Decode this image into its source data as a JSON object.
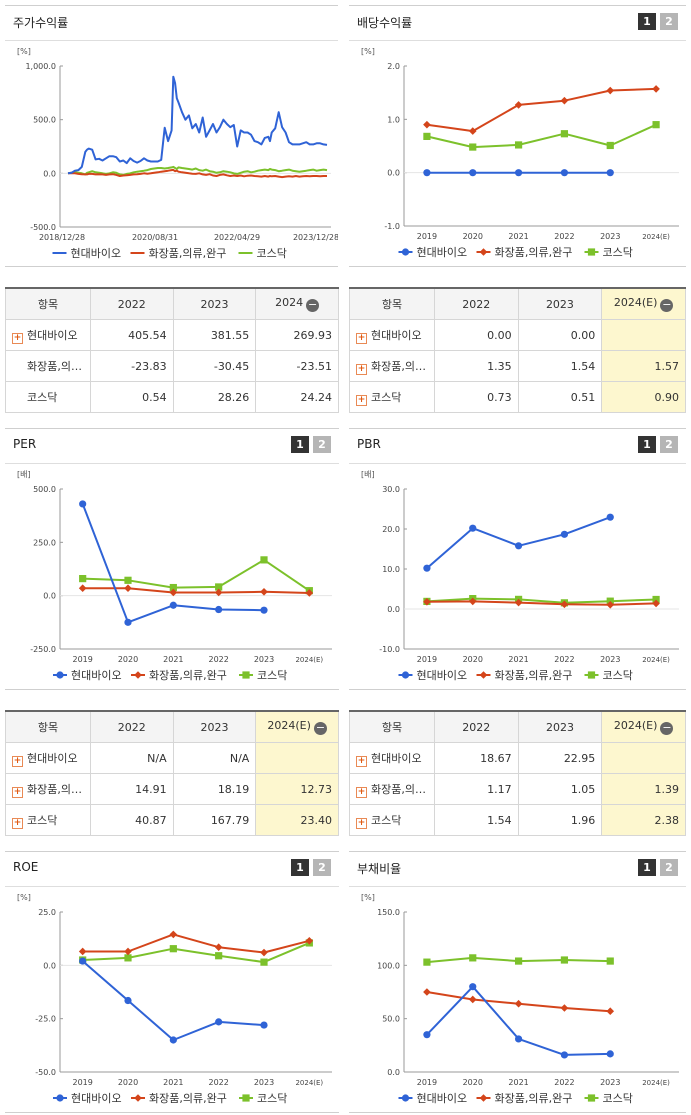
{
  "legend": [
    "현대바이오",
    "화장품,의류,완구",
    "코스닥"
  ],
  "colors": {
    "series1": "#2f63d6",
    "series2": "#d4451b",
    "series3": "#7cc12b"
  },
  "page_buttons": [
    "1",
    "2"
  ],
  "chart_data": [
    {
      "id": "stock_return",
      "panel_title": "주가수익률",
      "type": "line",
      "unit": "[%]",
      "x_ticks": [
        "2018/12/28",
        "2020/08/31",
        "2022/04/29",
        "2023/12/28"
      ],
      "yticks": [
        "1,000.0",
        "500.0",
        "0.0",
        "-500.0"
      ],
      "ylim": [
        -500,
        1000
      ],
      "x": [
        0,
        2,
        4,
        6,
        8,
        10,
        11,
        12,
        14,
        16,
        18,
        20,
        22,
        24,
        26,
        28,
        30,
        32,
        34,
        36,
        38,
        40,
        42,
        44,
        46,
        48,
        50,
        52,
        54,
        56,
        58,
        60,
        61,
        62,
        63,
        64,
        66,
        68,
        70,
        72,
        74,
        76,
        78,
        80,
        82,
        84,
        86,
        88,
        90,
        92,
        94,
        96,
        98,
        100,
        102,
        104,
        106,
        108,
        110,
        112,
        114,
        116,
        117,
        118,
        120,
        122,
        124,
        126,
        128,
        130,
        132,
        134,
        136,
        138,
        140,
        142,
        144,
        146,
        148,
        150
      ],
      "series": [
        {
          "name": "현대바이오",
          "values": [
            0,
            5,
            25,
            30,
            60,
            200,
            220,
            230,
            220,
            130,
            135,
            120,
            140,
            160,
            160,
            150,
            110,
            120,
            95,
            140,
            115,
            100,
            115,
            140,
            120,
            110,
            110,
            110,
            125,
            425,
            300,
            400,
            900,
            840,
            700,
            660,
            570,
            500,
            540,
            420,
            460,
            380,
            520,
            340,
            400,
            460,
            380,
            430,
            500,
            460,
            430,
            450,
            250,
            400,
            380,
            380,
            360,
            300,
            290,
            270,
            330,
            340,
            300,
            380,
            420,
            570,
            430,
            380,
            290,
            270,
            270,
            270,
            280,
            290,
            270,
            270,
            280,
            280,
            270,
            265
          ]
        },
        {
          "name": "화장품,의류,완구",
          "values": [
            0,
            0,
            0,
            -5,
            -8,
            -10,
            -10,
            -5,
            -5,
            -10,
            -8,
            -10,
            -15,
            -10,
            -8,
            -15,
            -25,
            -20,
            -18,
            -15,
            -10,
            -8,
            -5,
            0,
            -3,
            0,
            5,
            10,
            15,
            20,
            25,
            30,
            32,
            20,
            25,
            15,
            10,
            5,
            0,
            -3,
            -5,
            0,
            -10,
            -15,
            -8,
            -20,
            -25,
            -15,
            -10,
            -18,
            -25,
            -20,
            -25,
            -20,
            -28,
            -22,
            -20,
            -25,
            -28,
            -30,
            -25,
            -30,
            -25,
            -28,
            -25,
            -30,
            -35,
            -30,
            -28,
            -30,
            -25,
            -30,
            -28,
            -25,
            -28,
            -25,
            -25,
            -28,
            -25,
            -25
          ]
        },
        {
          "name": "코스닥",
          "values": [
            0,
            5,
            10,
            5,
            0,
            -10,
            5,
            10,
            20,
            10,
            5,
            0,
            -5,
            0,
            10,
            5,
            -10,
            -15,
            -5,
            0,
            10,
            15,
            20,
            25,
            30,
            40,
            45,
            50,
            50,
            45,
            50,
            55,
            60,
            50,
            40,
            55,
            50,
            45,
            40,
            35,
            45,
            30,
            25,
            35,
            20,
            15,
            5,
            10,
            20,
            15,
            10,
            0,
            -5,
            5,
            15,
            20,
            10,
            15,
            25,
            30,
            35,
            30,
            40,
            35,
            30,
            20,
            25,
            30,
            35,
            25,
            20,
            15,
            20,
            25,
            30,
            35,
            25,
            30,
            35,
            30
          ]
        }
      ]
    },
    {
      "id": "dividend",
      "panel_title": "배당수익률",
      "type": "line",
      "unit": "[%]",
      "categories": [
        "2019",
        "2020",
        "2021",
        "2022",
        "2023",
        "2024(E)"
      ],
      "yticks": [
        "2.0",
        "1.0",
        "0.0",
        "-1.0"
      ],
      "ylim": [
        -1,
        2
      ],
      "series": [
        {
          "name": "현대바이오",
          "values": [
            0.0,
            0.0,
            0.0,
            0.0,
            0.0,
            null
          ]
        },
        {
          "name": "화장품,의류,완구",
          "values": [
            0.9,
            0.78,
            1.27,
            1.35,
            1.54,
            1.57
          ]
        },
        {
          "name": "코스닥",
          "values": [
            0.68,
            0.48,
            0.52,
            0.73,
            0.51,
            0.9
          ]
        }
      ]
    },
    {
      "id": "per",
      "panel_title": "PER",
      "type": "line",
      "unit": "[배]",
      "categories": [
        "2019",
        "2020",
        "2021",
        "2022",
        "2023",
        "2024(E)"
      ],
      "yticks": [
        "500.0",
        "250.0",
        "0.0",
        "-250.0"
      ],
      "ylim": [
        -250,
        500
      ],
      "series": [
        {
          "name": "현대바이오",
          "values": [
            430,
            -125,
            -45,
            -65,
            -68,
            null
          ]
        },
        {
          "name": "화장품,의류,완구",
          "values": [
            35,
            35,
            15,
            14.91,
            18.19,
            12.73
          ]
        },
        {
          "name": "코스닥",
          "values": [
            80,
            72,
            38,
            40.87,
            167.79,
            23.4
          ]
        }
      ]
    },
    {
      "id": "pbr",
      "panel_title": "PBR",
      "type": "line",
      "unit": "[배]",
      "categories": [
        "2019",
        "2020",
        "2021",
        "2022",
        "2023",
        "2024(E)"
      ],
      "yticks": [
        "30.0",
        "20.0",
        "10.0",
        "0.0",
        "-10.0"
      ],
      "ylim": [
        -10,
        30
      ],
      "series": [
        {
          "name": "현대바이오",
          "values": [
            10.2,
            20.2,
            15.8,
            18.67,
            22.95,
            null
          ]
        },
        {
          "name": "화장품,의류,완구",
          "values": [
            1.8,
            1.9,
            1.6,
            1.17,
            1.05,
            1.39
          ]
        },
        {
          "name": "코스닥",
          "values": [
            1.9,
            2.6,
            2.4,
            1.54,
            1.96,
            2.38
          ]
        }
      ]
    },
    {
      "id": "roe",
      "panel_title": "ROE",
      "type": "line",
      "unit": "[%]",
      "categories": [
        "2019",
        "2020",
        "2021",
        "2022",
        "2023",
        "2024(E)"
      ],
      "yticks": [
        "25.0",
        "0.0",
        "-25.0",
        "-50.0"
      ],
      "ylim": [
        -50,
        25
      ],
      "series": [
        {
          "name": "현대바이오",
          "values": [
            2,
            -16.5,
            -35,
            -26.5,
            -28,
            null
          ]
        },
        {
          "name": "화장품,의류,완구",
          "values": [
            6.5,
            6.5,
            14.5,
            8.5,
            6,
            11.5
          ]
        },
        {
          "name": "코스닥",
          "values": [
            2.5,
            3.5,
            7.8,
            4.5,
            1.5,
            10.5
          ]
        }
      ]
    },
    {
      "id": "debt",
      "panel_title": "부채비율",
      "type": "line",
      "unit": "[%]",
      "categories": [
        "2019",
        "2020",
        "2021",
        "2022",
        "2023",
        "2024(E)"
      ],
      "yticks": [
        "150.0",
        "100.0",
        "50.0",
        "0.0"
      ],
      "ylim": [
        0,
        150
      ],
      "series": [
        {
          "name": "현대바이오",
          "values": [
            35,
            80,
            31,
            16,
            17,
            null
          ]
        },
        {
          "name": "화장품,의류,완구",
          "values": [
            75,
            68,
            64,
            60,
            57,
            null
          ]
        },
        {
          "name": "코스닥",
          "values": [
            103,
            107,
            104,
            105,
            104,
            null
          ]
        }
      ]
    }
  ],
  "tables": {
    "stock_return": {
      "headers": [
        "항목",
        "2022",
        "2023",
        "2024"
      ],
      "rows": [
        {
          "name": "현대바이오",
          "plus": true,
          "values": [
            "405.54",
            "381.55",
            "269.93"
          ]
        },
        {
          "name": "화장품,의…",
          "plus": false,
          "values": [
            "-23.83",
            "-30.45",
            "-23.51"
          ]
        },
        {
          "name": "코스닥",
          "plus": false,
          "values": [
            "0.54",
            "28.26",
            "24.24"
          ]
        }
      ]
    },
    "dividend": {
      "headers": [
        "항목",
        "2022",
        "2023",
        "2024(E)"
      ],
      "rows": [
        {
          "name": "현대바이오",
          "plus": true,
          "values": [
            "0.00",
            "0.00",
            ""
          ]
        },
        {
          "name": "화장품,의…",
          "plus": true,
          "values": [
            "1.35",
            "1.54",
            "1.57"
          ]
        },
        {
          "name": "코스닥",
          "plus": true,
          "values": [
            "0.73",
            "0.51",
            "0.90"
          ]
        }
      ]
    },
    "per": {
      "headers": [
        "항목",
        "2022",
        "2023",
        "2024(E)"
      ],
      "rows": [
        {
          "name": "현대바이오",
          "plus": true,
          "values": [
            "N/A",
            "N/A",
            ""
          ]
        },
        {
          "name": "화장품,의…",
          "plus": true,
          "values": [
            "14.91",
            "18.19",
            "12.73"
          ]
        },
        {
          "name": "코스닥",
          "plus": true,
          "values": [
            "40.87",
            "167.79",
            "23.40"
          ]
        }
      ]
    },
    "pbr": {
      "headers": [
        "항목",
        "2022",
        "2023",
        "2024(E)"
      ],
      "rows": [
        {
          "name": "현대바이오",
          "plus": true,
          "values": [
            "18.67",
            "22.95",
            ""
          ]
        },
        {
          "name": "화장품,의…",
          "plus": true,
          "values": [
            "1.17",
            "1.05",
            "1.39"
          ]
        },
        {
          "name": "코스닥",
          "plus": true,
          "values": [
            "1.54",
            "1.96",
            "2.38"
          ]
        }
      ]
    }
  }
}
